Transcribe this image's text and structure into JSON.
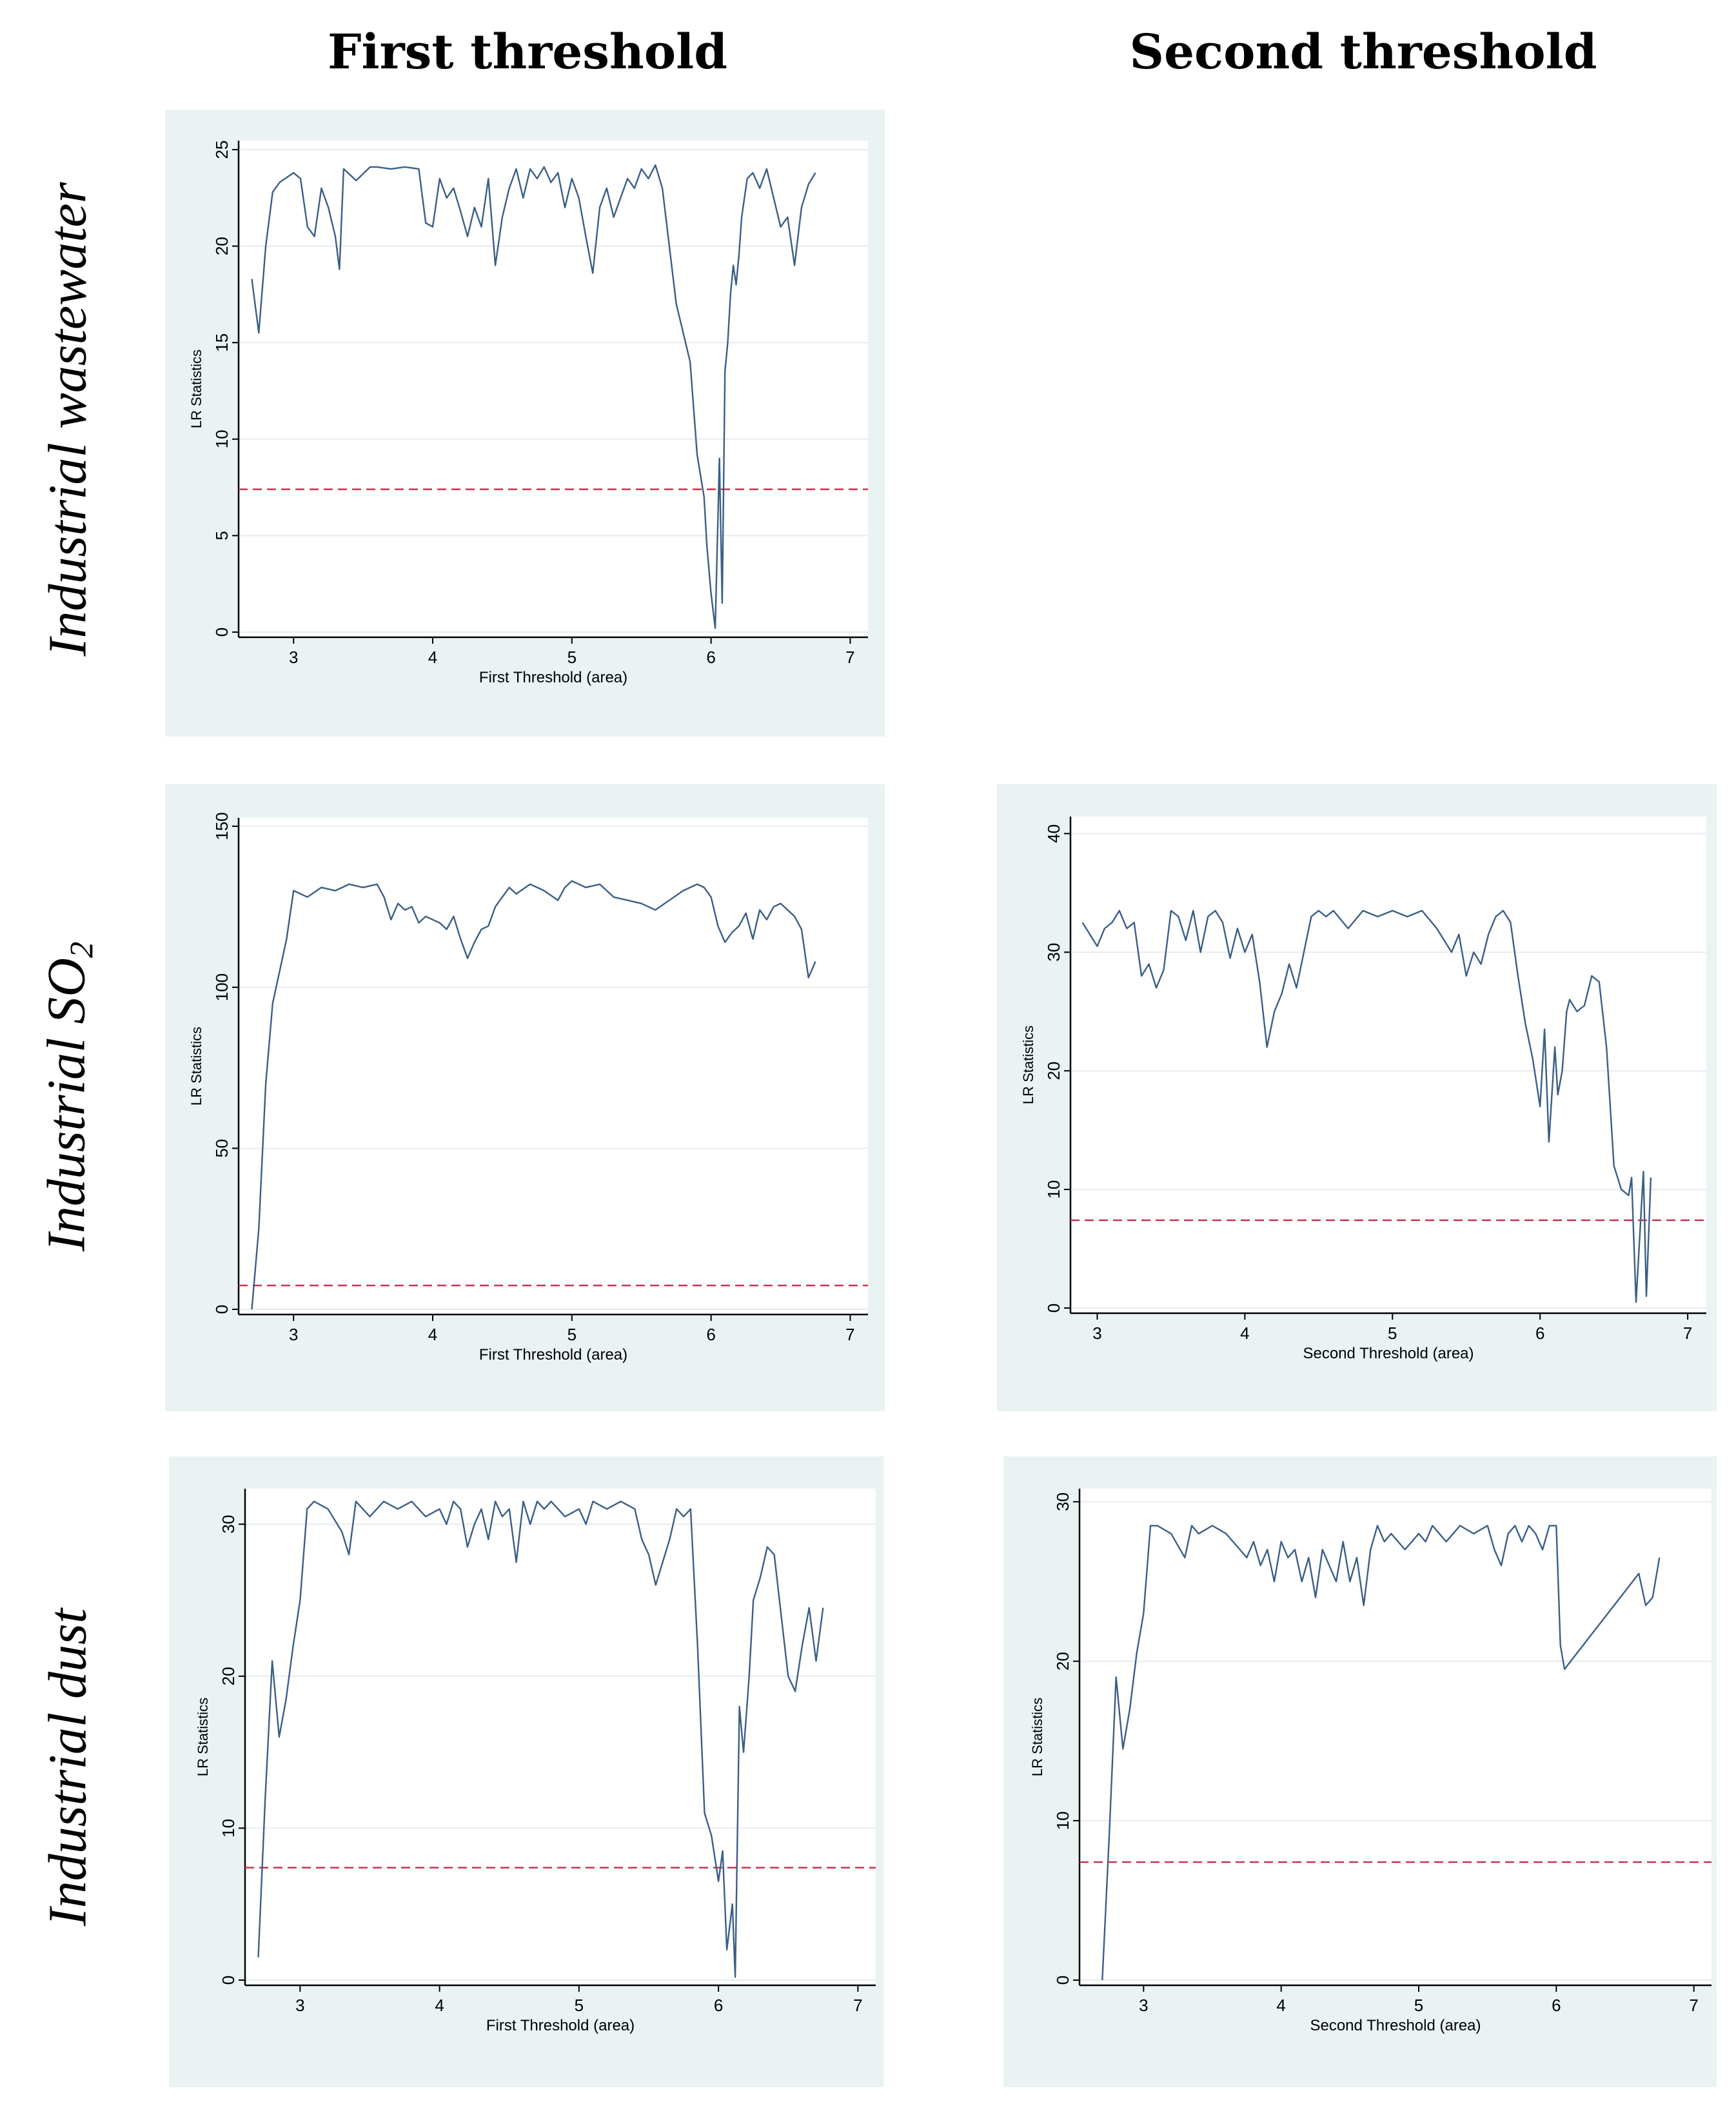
{
  "column_headers": {
    "first": "First threshold",
    "second": "Second threshold"
  },
  "row_headers": {
    "wastewater": "Industrial wastewater",
    "so2_prefix": "Industrial SO",
    "so2_sub": "2",
    "dust": "Industrial dust"
  },
  "colors": {
    "line": "#3a5f86",
    "threshold": "#c8334d",
    "panel_bg": "#eaf2f3",
    "grid": "#e6ecef"
  },
  "chart_data": [
    {
      "id": "wastewater-first",
      "type": "line",
      "xlabel": "First Threshold (area)",
      "ylabel": "LR Statistics",
      "xlim": [
        2.67,
        7.1
      ],
      "ylim": [
        0,
        25.2
      ],
      "xticks": [
        3,
        4,
        5,
        6,
        7
      ],
      "yticks": [
        0,
        5,
        10,
        15,
        20,
        25
      ],
      "critical_value": 7.4,
      "series": [
        {
          "name": "LR",
          "x": [
            2.7,
            2.75,
            2.8,
            2.85,
            2.9,
            3.0,
            3.05,
            3.1,
            3.15,
            3.2,
            3.25,
            3.3,
            3.33,
            3.36,
            3.45,
            3.55,
            3.6,
            3.7,
            3.8,
            3.9,
            3.95,
            4.0,
            4.05,
            4.1,
            4.15,
            4.2,
            4.25,
            4.3,
            4.35,
            4.4,
            4.45,
            4.5,
            4.55,
            4.6,
            4.65,
            4.7,
            4.75,
            4.8,
            4.85,
            4.9,
            4.95,
            5.0,
            5.05,
            5.1,
            5.15,
            5.2,
            5.25,
            5.3,
            5.35,
            5.4,
            5.45,
            5.5,
            5.55,
            5.6,
            5.65,
            5.7,
            5.75,
            5.8,
            5.85,
            5.9,
            5.95,
            5.97,
            6.0,
            6.03,
            6.06,
            6.08,
            6.1,
            6.12,
            6.14,
            6.16,
            6.18,
            6.2,
            6.22,
            6.24,
            6.26,
            6.3,
            6.35,
            6.4,
            6.45,
            6.5,
            6.55,
            6.6,
            6.65,
            6.7,
            6.75
          ],
          "values": [
            18.3,
            15.5,
            20.0,
            22.8,
            23.3,
            23.8,
            23.5,
            21.0,
            20.5,
            23.0,
            22.0,
            20.5,
            18.8,
            24.0,
            23.4,
            24.1,
            24.1,
            24.0,
            24.1,
            24.0,
            21.2,
            21.0,
            23.5,
            22.5,
            23.0,
            21.8,
            20.5,
            22.0,
            21.0,
            23.5,
            19.0,
            21.5,
            23.0,
            24.0,
            22.5,
            24.0,
            23.5,
            24.1,
            23.3,
            23.8,
            22.0,
            23.5,
            22.5,
            20.5,
            18.6,
            22.0,
            23.0,
            21.5,
            22.5,
            23.5,
            23.0,
            24.0,
            23.5,
            24.2,
            23.0,
            20.0,
            17.0,
            15.5,
            14.0,
            9.2,
            7.0,
            4.5,
            2.0,
            0.2,
            9.0,
            1.5,
            13.5,
            15.0,
            17.5,
            19.0,
            18.0,
            19.5,
            21.5,
            22.5,
            23.5,
            23.8,
            23.0,
            24.0,
            22.5,
            21.0,
            21.5,
            19.0,
            22.0,
            23.2,
            23.8
          ]
        }
      ]
    },
    {
      "id": "so2-first",
      "type": "line",
      "xlabel": "First Threshold (area)",
      "ylabel": "LR Statistics",
      "xlim": [
        2.67,
        7.1
      ],
      "ylim": [
        0,
        151
      ],
      "xticks": [
        3,
        4,
        5,
        6,
        7
      ],
      "yticks": [
        0,
        50,
        100,
        150
      ],
      "critical_value": 7.4,
      "series": [
        {
          "name": "LR",
          "x": [
            2.7,
            2.75,
            2.8,
            2.85,
            2.9,
            2.95,
            3.0,
            3.05,
            3.1,
            3.2,
            3.3,
            3.4,
            3.5,
            3.6,
            3.65,
            3.7,
            3.75,
            3.8,
            3.85,
            3.9,
            3.95,
            4.0,
            4.05,
            4.1,
            4.15,
            4.2,
            4.25,
            4.3,
            4.35,
            4.4,
            4.45,
            4.5,
            4.55,
            4.6,
            4.7,
            4.8,
            4.9,
            4.95,
            5.0,
            5.1,
            5.2,
            5.3,
            5.4,
            5.5,
            5.6,
            5.7,
            5.8,
            5.9,
            5.95,
            6.0,
            6.05,
            6.1,
            6.15,
            6.2,
            6.25,
            6.3,
            6.35,
            6.4,
            6.45,
            6.5,
            6.55,
            6.6,
            6.65,
            6.7,
            6.75
          ],
          "values": [
            0,
            25,
            70,
            95,
            105,
            115,
            130,
            129,
            128,
            131,
            130,
            132,
            131,
            132,
            128,
            121,
            126,
            124,
            125,
            120,
            122,
            121,
            120,
            118,
            122,
            115,
            109,
            114,
            118,
            119,
            125,
            128,
            131,
            129,
            132,
            130,
            127,
            131,
            133,
            131,
            132,
            128,
            127,
            126,
            124,
            127,
            130,
            132,
            131,
            128,
            119,
            114,
            117,
            119,
            123,
            115,
            124,
            121,
            125,
            126,
            124,
            122,
            118,
            103,
            108
          ]
        }
      ]
    },
    {
      "id": "so2-second",
      "type": "line",
      "xlabel": "Second Threshold (area)",
      "ylabel": "LR Statistics",
      "xlim": [
        2.88,
        7.1
      ],
      "ylim": [
        0,
        41
      ],
      "xticks": [
        3,
        4,
        5,
        6,
        7
      ],
      "yticks": [
        0,
        10,
        20,
        30,
        40
      ],
      "critical_value": 7.4,
      "series": [
        {
          "name": "LR",
          "x": [
            2.9,
            3.0,
            3.05,
            3.1,
            3.15,
            3.2,
            3.25,
            3.3,
            3.35,
            3.4,
            3.45,
            3.5,
            3.55,
            3.6,
            3.65,
            3.7,
            3.75,
            3.8,
            3.85,
            3.9,
            3.95,
            4.0,
            4.05,
            4.1,
            4.15,
            4.2,
            4.25,
            4.3,
            4.35,
            4.4,
            4.45,
            4.5,
            4.55,
            4.6,
            4.7,
            4.8,
            4.9,
            5.0,
            5.1,
            5.2,
            5.3,
            5.4,
            5.45,
            5.5,
            5.55,
            5.6,
            5.65,
            5.7,
            5.75,
            5.8,
            5.85,
            5.9,
            5.95,
            6.0,
            6.03,
            6.06,
            6.1,
            6.12,
            6.15,
            6.18,
            6.2,
            6.25,
            6.3,
            6.35,
            6.4,
            6.45,
            6.5,
            6.55,
            6.6,
            6.62,
            6.65,
            6.7,
            6.72,
            6.75
          ],
          "values": [
            32.5,
            30.5,
            32.0,
            32.5,
            33.5,
            32.0,
            32.5,
            28.0,
            29.0,
            27.0,
            28.5,
            33.5,
            33.0,
            31.0,
            33.5,
            30.0,
            33.0,
            33.5,
            32.5,
            29.5,
            32.0,
            30.0,
            31.5,
            27.5,
            22.0,
            25.0,
            26.5,
            29.0,
            27.0,
            30.0,
            33.0,
            33.5,
            33.0,
            33.5,
            32.0,
            33.5,
            33.0,
            33.5,
            33.0,
            33.5,
            32.0,
            30.0,
            31.5,
            28.0,
            30.0,
            29.0,
            31.5,
            33.0,
            33.5,
            32.5,
            28.0,
            24.0,
            21.0,
            17.0,
            23.5,
            14.0,
            22.0,
            18.0,
            20.0,
            25.0,
            26.0,
            25.0,
            25.5,
            28.0,
            27.5,
            22.0,
            12.0,
            10.0,
            9.5,
            11.0,
            0.5,
            11.5,
            1.0,
            11.0
          ]
        }
      ]
    },
    {
      "id": "dust-first",
      "type": "line",
      "xlabel": "First Threshold (area)",
      "ylabel": "LR Statistics",
      "xlim": [
        2.67,
        7.1
      ],
      "ylim": [
        0,
        32
      ],
      "xticks": [
        3,
        4,
        5,
        6,
        7
      ],
      "yticks": [
        0,
        10,
        20,
        30
      ],
      "critical_value": 7.4,
      "series": [
        {
          "name": "LR",
          "x": [
            2.7,
            2.75,
            2.8,
            2.85,
            2.9,
            2.95,
            3.0,
            3.05,
            3.1,
            3.2,
            3.3,
            3.35,
            3.4,
            3.5,
            3.6,
            3.7,
            3.8,
            3.9,
            4.0,
            4.05,
            4.1,
            4.15,
            4.2,
            4.25,
            4.3,
            4.35,
            4.4,
            4.45,
            4.5,
            4.55,
            4.6,
            4.65,
            4.7,
            4.75,
            4.8,
            4.9,
            5.0,
            5.05,
            5.1,
            5.2,
            5.3,
            5.4,
            5.45,
            5.5,
            5.55,
            5.6,
            5.65,
            5.7,
            5.75,
            5.8,
            5.85,
            5.9,
            5.95,
            6.0,
            6.03,
            6.06,
            6.1,
            6.12,
            6.15,
            6.18,
            6.2,
            6.22,
            6.25,
            6.3,
            6.35,
            6.4,
            6.45,
            6.5,
            6.55,
            6.6,
            6.65,
            6.7,
            6.75
          ],
          "values": [
            1.5,
            12.0,
            21.0,
            16.0,
            18.5,
            22.0,
            25.0,
            31.0,
            31.5,
            31.0,
            29.5,
            28.0,
            31.5,
            30.5,
            31.5,
            31.0,
            31.5,
            30.5,
            31.0,
            30.0,
            31.5,
            31.0,
            28.5,
            30.0,
            31.0,
            29.0,
            31.5,
            30.5,
            31.0,
            27.5,
            31.5,
            30.0,
            31.5,
            31.0,
            31.5,
            30.5,
            31.0,
            30.0,
            31.5,
            31.0,
            31.5,
            31.0,
            29.0,
            28.0,
            26.0,
            27.5,
            29.0,
            31.0,
            30.5,
            31.0,
            22.0,
            11.0,
            9.5,
            6.5,
            8.5,
            2.0,
            5.0,
            0.2,
            18.0,
            15.0,
            17.5,
            20.0,
            25.0,
            26.5,
            28.5,
            28.0,
            24.0,
            20.0,
            19.0,
            22.0,
            24.5,
            21.0,
            24.5
          ]
        }
      ]
    },
    {
      "id": "dust-second",
      "type": "line",
      "xlabel": "Second Threshold (area)",
      "ylabel": "LR Statistics",
      "xlim": [
        2.6,
        7.1
      ],
      "ylim": [
        0,
        30.5
      ],
      "xticks": [
        3,
        4,
        5,
        6,
        7
      ],
      "yticks": [
        0,
        10,
        20,
        30
      ],
      "critical_value": 7.4,
      "series": [
        {
          "name": "LR",
          "x": [
            2.7,
            2.75,
            2.8,
            2.85,
            2.9,
            2.95,
            3.0,
            3.05,
            3.1,
            3.2,
            3.3,
            3.35,
            3.4,
            3.5,
            3.6,
            3.7,
            3.75,
            3.8,
            3.85,
            3.9,
            3.95,
            4.0,
            4.05,
            4.1,
            4.15,
            4.2,
            4.25,
            4.3,
            4.35,
            4.4,
            4.45,
            4.5,
            4.55,
            4.6,
            4.65,
            4.7,
            4.75,
            4.8,
            4.9,
            5.0,
            5.05,
            5.1,
            5.2,
            5.3,
            5.4,
            5.5,
            5.55,
            5.6,
            5.65,
            5.7,
            5.75,
            5.8,
            5.85,
            5.9,
            5.95,
            6.0,
            6.03,
            6.06,
            6.6,
            6.65,
            6.7,
            6.75
          ],
          "values": [
            0,
            9.0,
            19.0,
            14.5,
            17.0,
            20.5,
            23.0,
            28.5,
            28.5,
            28.0,
            26.5,
            28.5,
            28.0,
            28.5,
            28.0,
            27.0,
            26.5,
            27.5,
            26.0,
            27.0,
            25.0,
            27.5,
            26.5,
            27.0,
            25.0,
            26.5,
            24.0,
            27.0,
            26.0,
            25.0,
            27.5,
            25.0,
            26.5,
            23.5,
            27.0,
            28.5,
            27.5,
            28.0,
            27.0,
            28.0,
            27.5,
            28.5,
            27.5,
            28.5,
            28.0,
            28.5,
            27.0,
            26.0,
            28.0,
            28.5,
            27.5,
            28.5,
            28.0,
            27.0,
            28.5,
            28.5,
            21.0,
            19.5,
            25.5,
            23.5,
            24.0,
            26.5
          ]
        }
      ]
    }
  ]
}
